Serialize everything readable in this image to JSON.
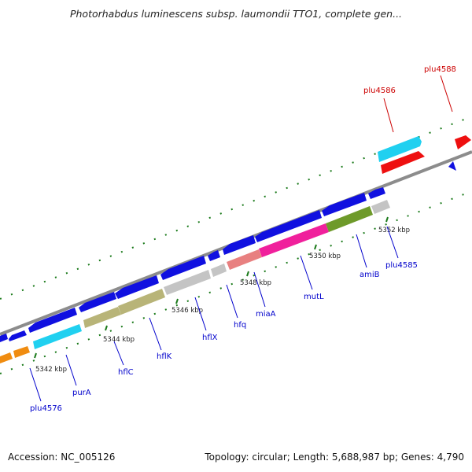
{
  "title": "Photorhabdus luminescens subsp. laumondii TTO1, complete gen...",
  "footer": {
    "accession": "Accession: NC_005126",
    "stats": "Topology: circular; Length: 5,688,987 bp; Genes: 4,790"
  },
  "kbp_ticks": [
    "5342 kbp",
    "5344 kbp",
    "5346 kbp",
    "5348 kbp",
    "5350 kbp",
    "5352 kbp"
  ],
  "gene_labels": [
    {
      "text": "plu4576",
      "color": "#0000cc"
    },
    {
      "text": "purA",
      "color": "#0000cc"
    },
    {
      "text": "hflC",
      "color": "#0000cc"
    },
    {
      "text": "hflK",
      "color": "#0000cc"
    },
    {
      "text": "hflX",
      "color": "#0000cc"
    },
    {
      "text": "hfq",
      "color": "#0000cc"
    },
    {
      "text": "miaA",
      "color": "#0000cc"
    },
    {
      "text": "mutL",
      "color": "#0000cc"
    },
    {
      "text": "amiB",
      "color": "#0000cc"
    },
    {
      "text": "plu4585",
      "color": "#0000cc"
    },
    {
      "text": "plu4586",
      "color": "#cc0000"
    },
    {
      "text": "plu4588",
      "color": "#cc0000"
    }
  ],
  "colors": {
    "backbone": "#8c8c8c",
    "blue_gene": "#1010e0",
    "cyan_gene": "#20d0f0",
    "olive_gene": "#b8b478",
    "grey_gene": "#c4c4c4",
    "salmon_gene": "#e88080",
    "magenta_gene": "#f0209c",
    "green_gene": "#6e9a2a",
    "orange_gene": "#f08c10",
    "red_gene": "#ee1010",
    "tick_green": "#1a7a1a"
  }
}
